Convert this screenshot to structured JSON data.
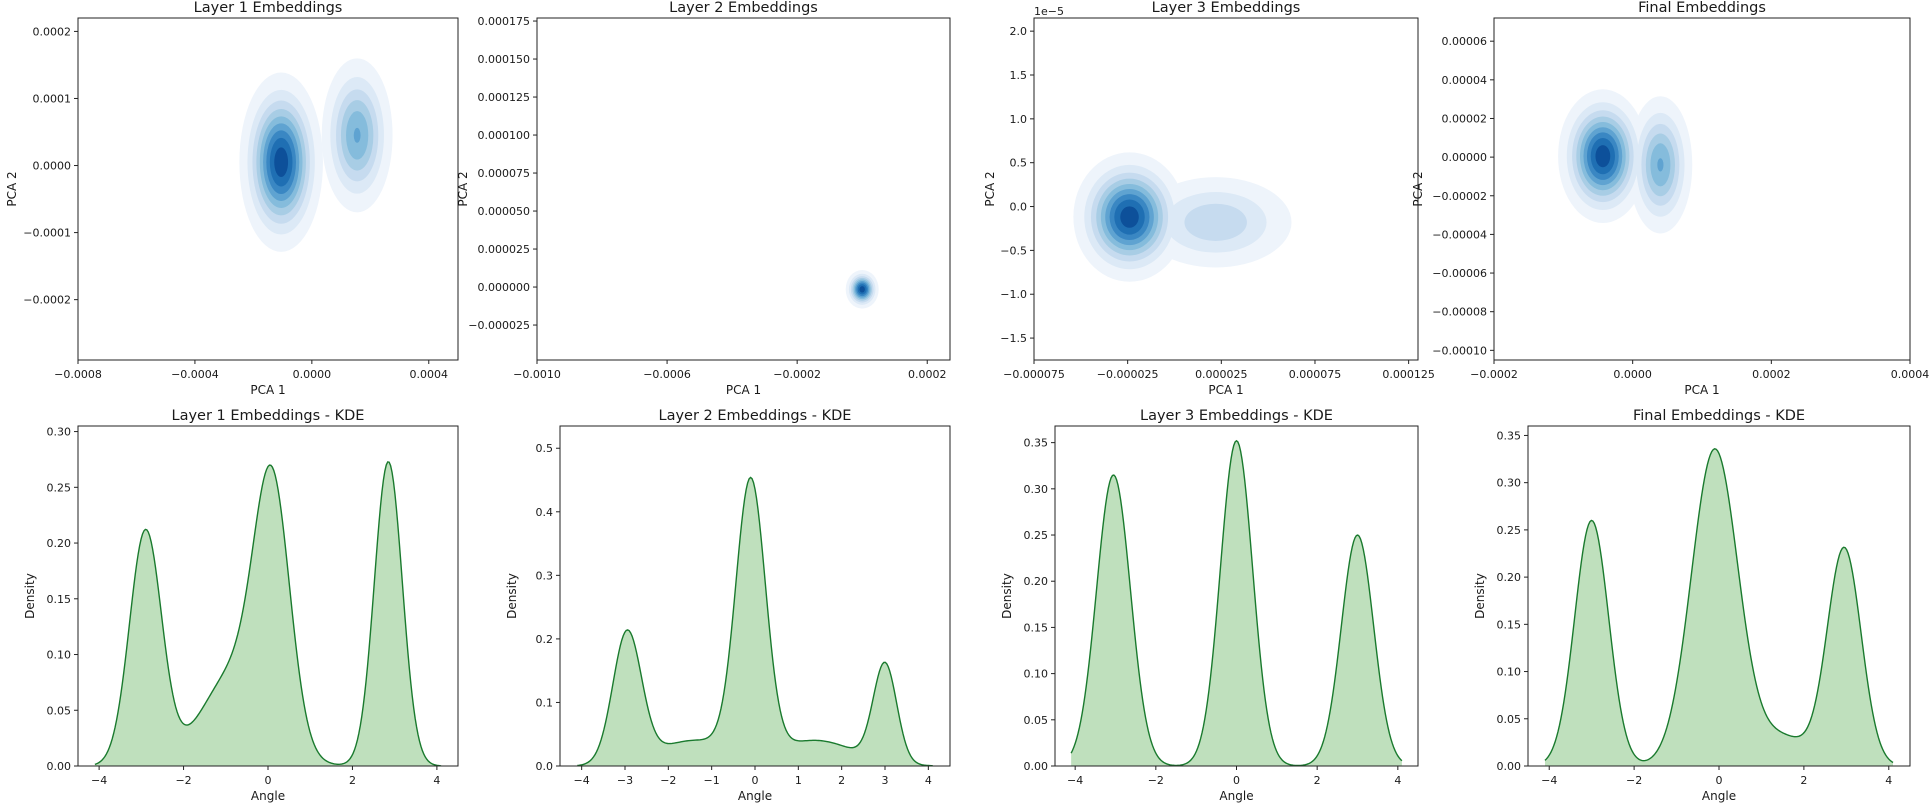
{
  "figure": {
    "title": ""
  },
  "chart_data": [
    {
      "type": "kde2d",
      "title": "Layer 1 Embeddings",
      "xlabel": "PCA 1",
      "ylabel": "PCA 2",
      "xlim": [
        -0.0008,
        0.0005
      ],
      "ylim": [
        -0.00029,
        0.00022
      ],
      "xticks": [
        -0.0008,
        -0.0004,
        0.0,
        0.0004
      ],
      "xticklabels": [
        "−0.0008",
        "−0.0004",
        "0.0000",
        "0.0004"
      ],
      "yticks": [
        -0.0002,
        -0.0001,
        0.0,
        0.0001,
        0.0002
      ],
      "yticklabels": [
        "−0.0002",
        "−0.0001",
        "0.0000",
        "0.0001",
        "0.0002"
      ],
      "offset_label": "",
      "components": [
        {
          "cx": -0.000105,
          "cy": 5e-06,
          "sx": 6.2e-05,
          "sy": 5.8e-05,
          "w": 1.0
        },
        {
          "cx": 0.000155,
          "cy": 4.5e-05,
          "sx": 5.8e-05,
          "sy": 5.5e-05,
          "w": 0.62
        }
      ]
    },
    {
      "type": "kde2d",
      "title": "Layer 2 Embeddings",
      "xlabel": "PCA 1",
      "ylabel": "PCA 2",
      "xlim": [
        -0.001,
        0.00027
      ],
      "ylim": [
        -4.8e-05,
        0.000177
      ],
      "xticks": [
        -0.001,
        -0.0006,
        -0.0002,
        0.0002
      ],
      "xticklabels": [
        "−0.0010",
        "−0.0006",
        "−0.0002",
        "0.0002"
      ],
      "yticks": [
        -2.5e-05,
        0.0,
        2.5e-05,
        5e-05,
        7.5e-05,
        0.0001,
        0.000125,
        0.00015,
        0.000175
      ],
      "yticklabels": [
        "−0.000025",
        "0.000000",
        "0.000025",
        "0.000050",
        "0.000075",
        "0.000100",
        "0.000125",
        "0.000150",
        "0.000175"
      ],
      "offset_label": "",
      "components": [
        {
          "cx": 0.0,
          "cy": -1.5e-06,
          "sx": 2.2e-05,
          "sy": 5.5e-06,
          "w": 1.0
        }
      ]
    },
    {
      "type": "kde2d",
      "title": "Layer 3 Embeddings",
      "xlabel": "PCA 1",
      "ylabel": "PCA 2",
      "xlim": [
        -7.5e-05,
        0.00013
      ],
      "ylim": [
        -1.75e-05,
        2.15e-05
      ],
      "xticks": [
        -7.5e-05,
        -2.5e-05,
        2.5e-05,
        7.5e-05,
        0.000125
      ],
      "xticklabels": [
        "−0.000075",
        "−0.000025",
        "0.000025",
        "0.000075",
        "0.000125"
      ],
      "yticks": [
        -1.5e-05,
        -1e-05,
        -5e-06,
        0.0,
        5e-06,
        1e-05,
        1.5e-05,
        2e-05
      ],
      "yticklabels": [
        "−1.5",
        "−1.0",
        "−0.5",
        "0.0",
        "0.5",
        "1.0",
        "1.5",
        "2.0"
      ],
      "offset_label": "1e−5",
      "components": [
        {
          "cx": -2.4e-05,
          "cy": -1.2e-06,
          "sx": 1.3e-05,
          "sy": 3.2e-06,
          "w": 1.0
        },
        {
          "cx": 2.2e-05,
          "cy": -1.8e-06,
          "sx": 2.2e-05,
          "sy": 2.8e-06,
          "w": 0.38
        }
      ]
    },
    {
      "type": "kde2d",
      "title": "Final Embeddings",
      "xlabel": "PCA 1",
      "ylabel": "PCA 2",
      "xlim": [
        -0.0002,
        0.0004
      ],
      "ylim": [
        -0.000105,
        7.2e-05
      ],
      "xticks": [
        -0.0002,
        0.0,
        0.0002,
        0.0004
      ],
      "xticklabels": [
        "−0.0002",
        "0.0000",
        "0.0002",
        "0.0004"
      ],
      "yticks": [
        -0.0001,
        -8e-05,
        -6e-05,
        -4e-05,
        -2e-05,
        0.0,
        2e-05,
        4e-05,
        6e-05
      ],
      "yticklabels": [
        "−0.00010",
        "−0.00008",
        "−0.00006",
        "−0.00004",
        "−0.00002",
        "0.00000",
        "0.00002",
        "0.00004",
        "0.00006"
      ],
      "offset_label": "",
      "components": [
        {
          "cx": -4.3e-05,
          "cy": 5e-07,
          "sx": 2.8e-05,
          "sy": 1.5e-05,
          "w": 1.0
        },
        {
          "cx": 4e-05,
          "cy": -4e-06,
          "sx": 2.2e-05,
          "sy": 1.7e-05,
          "w": 0.62
        }
      ]
    },
    {
      "type": "area",
      "title": "Layer 1 Embeddings - KDE",
      "xlabel": "Angle",
      "ylabel": "Density",
      "xlim": [
        -4.5,
        4.5
      ],
      "ylim": [
        0,
        0.305
      ],
      "xticks": [
        -4,
        -2,
        0,
        2,
        4
      ],
      "xticklabels": [
        "−4",
        "−2",
        "0",
        "2",
        "4"
      ],
      "yticks": [
        0,
        0.05,
        0.1,
        0.15,
        0.2,
        0.25,
        0.3
      ],
      "yticklabels": [
        "0.00",
        "0.05",
        "0.10",
        "0.15",
        "0.20",
        "0.25",
        "0.30"
      ],
      "xrange": [
        -4.1,
        4.1
      ],
      "peaks": [
        {
          "mu": -2.9,
          "sigma": 0.38,
          "amp": 0.21
        },
        {
          "mu": 0.1,
          "sigma": 0.42,
          "amp": 0.22
        },
        {
          "mu": 2.85,
          "sigma": 0.33,
          "amp": 0.273
        },
        {
          "mu": -0.75,
          "sigma": 0.8,
          "amp": 0.085
        }
      ]
    },
    {
      "type": "area",
      "title": "Layer 2 Embeddings - KDE",
      "xlabel": "Angle",
      "ylabel": "Density",
      "xlim": [
        -4.5,
        4.5
      ],
      "ylim": [
        0,
        0.535
      ],
      "xticks": [
        -4,
        -3,
        -2,
        -1,
        0,
        1,
        2,
        3,
        4
      ],
      "xticklabels": [
        "−4",
        "−3",
        "−2",
        "−1",
        "0",
        "1",
        "2",
        "3",
        "4"
      ],
      "yticks": [
        0,
        0.1,
        0.2,
        0.3,
        0.4,
        0.5
      ],
      "yticklabels": [
        "0.0",
        "0.1",
        "0.2",
        "0.3",
        "0.4",
        "0.5"
      ],
      "xrange": [
        -4.1,
        4.1
      ],
      "peaks": [
        {
          "mu": -2.95,
          "sigma": 0.33,
          "amp": 0.205
        },
        {
          "mu": -0.1,
          "sigma": 0.34,
          "amp": 0.43
        },
        {
          "mu": 3.0,
          "sigma": 0.27,
          "amp": 0.155
        },
        {
          "mu": -1.4,
          "sigma": 0.9,
          "amp": 0.04
        },
        {
          "mu": 1.4,
          "sigma": 0.9,
          "amp": 0.04
        }
      ]
    },
    {
      "type": "area",
      "title": "Layer 3 Embeddings - KDE",
      "xlabel": "Angle",
      "ylabel": "Density",
      "xlim": [
        -4.5,
        4.5
      ],
      "ylim": [
        0,
        0.368
      ],
      "xticks": [
        -4,
        -2,
        0,
        2,
        4
      ],
      "xticklabels": [
        "−4",
        "−2",
        "0",
        "2",
        "4"
      ],
      "yticks": [
        0,
        0.05,
        0.1,
        0.15,
        0.2,
        0.25,
        0.3,
        0.35
      ],
      "yticklabels": [
        "0.00",
        "0.05",
        "0.10",
        "0.15",
        "0.20",
        "0.25",
        "0.30",
        "0.35"
      ],
      "xrange": [
        -4.1,
        4.1
      ],
      "peaks": [
        {
          "mu": -3.05,
          "sigma": 0.42,
          "amp": 0.315
        },
        {
          "mu": 0.0,
          "sigma": 0.4,
          "amp": 0.352
        },
        {
          "mu": 3.0,
          "sigma": 0.4,
          "amp": 0.25
        }
      ]
    },
    {
      "type": "area",
      "title": "Final Embeddings - KDE",
      "xlabel": "Angle",
      "ylabel": "Density",
      "xlim": [
        -4.5,
        4.5
      ],
      "ylim": [
        0,
        0.36
      ],
      "xticks": [
        -4,
        -2,
        0,
        2,
        4
      ],
      "xticklabels": [
        "−4",
        "−2",
        "0",
        "2",
        "4"
      ],
      "yticks": [
        0,
        0.05,
        0.1,
        0.15,
        0.2,
        0.25,
        0.3,
        0.35
      ],
      "yticklabels": [
        "0.00",
        "0.05",
        "0.10",
        "0.15",
        "0.20",
        "0.25",
        "0.30",
        "0.35"
      ],
      "xrange": [
        -4.1,
        4.1
      ],
      "peaks": [
        {
          "mu": -3.0,
          "sigma": 0.4,
          "amp": 0.26
        },
        {
          "mu": -0.1,
          "sigma": 0.55,
          "amp": 0.335
        },
        {
          "mu": 2.95,
          "sigma": 0.4,
          "amp": 0.23
        },
        {
          "mu": 1.5,
          "sigma": 0.6,
          "amp": 0.03
        }
      ]
    }
  ],
  "colors": {
    "contour_levels": [
      "#eef4fb",
      "#dce9f6",
      "#c6dbef",
      "#a8cde5",
      "#85bcdc",
      "#5fa3d1",
      "#3a87c3",
      "#1f6fb3",
      "#0d509a"
    ],
    "kde_fill": "#bfe0bd",
    "kde_line": "#1a7a2e"
  }
}
